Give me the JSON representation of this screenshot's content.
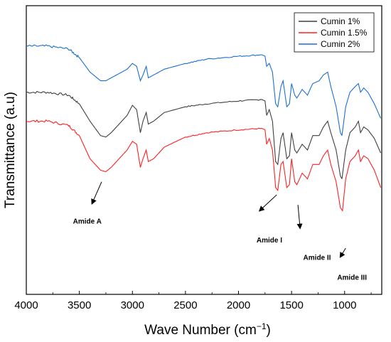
{
  "chart_data": {
    "type": "line",
    "xlabel": "Wave Number (cm",
    "xlabel_sup": "−1",
    "xlabel_close": ")",
    "ylabel": "Transmittance (a.u)",
    "xlim": [
      4000,
      650
    ],
    "x_reversed": true,
    "x_ticks": [
      4000,
      3500,
      3000,
      2500,
      2000,
      1500,
      1000
    ],
    "y_ticks_shown": false,
    "grid": false,
    "legend_position": "top-right",
    "series": [
      {
        "name": "Cumin 1%",
        "color": "#3f3f3f",
        "points": [
          [
            4000,
            0.7
          ],
          [
            3800,
            0.7
          ],
          [
            3600,
            0.69
          ],
          [
            3500,
            0.66
          ],
          [
            3400,
            0.6
          ],
          [
            3300,
            0.55
          ],
          [
            3250,
            0.545
          ],
          [
            3200,
            0.56
          ],
          [
            3100,
            0.6
          ],
          [
            3050,
            0.62
          ],
          [
            3000,
            0.655
          ],
          [
            2960,
            0.64
          ],
          [
            2925,
            0.56
          ],
          [
            2900,
            0.6
          ],
          [
            2870,
            0.63
          ],
          [
            2850,
            0.59
          ],
          [
            2800,
            0.6
          ],
          [
            2700,
            0.63
          ],
          [
            2500,
            0.65
          ],
          [
            2300,
            0.66
          ],
          [
            2000,
            0.67
          ],
          [
            1780,
            0.675
          ],
          [
            1750,
            0.67
          ],
          [
            1735,
            0.62
          ],
          [
            1710,
            0.64
          ],
          [
            1680,
            0.6
          ],
          [
            1650,
            0.46
          ],
          [
            1630,
            0.45
          ],
          [
            1600,
            0.54
          ],
          [
            1580,
            0.56
          ],
          [
            1545,
            0.47
          ],
          [
            1520,
            0.48
          ],
          [
            1500,
            0.56
          ],
          [
            1470,
            0.5
          ],
          [
            1450,
            0.49
          ],
          [
            1400,
            0.52
          ],
          [
            1350,
            0.5
          ],
          [
            1320,
            0.53
          ],
          [
            1300,
            0.55
          ],
          [
            1240,
            0.55
          ],
          [
            1200,
            0.58
          ],
          [
            1160,
            0.6
          ],
          [
            1130,
            0.56
          ],
          [
            1080,
            0.5
          ],
          [
            1040,
            0.41
          ],
          [
            1025,
            0.4
          ],
          [
            990,
            0.5
          ],
          [
            950,
            0.56
          ],
          [
            900,
            0.58
          ],
          [
            870,
            0.6
          ],
          [
            850,
            0.56
          ],
          [
            820,
            0.58
          ],
          [
            780,
            0.57
          ],
          [
            720,
            0.54
          ],
          [
            660,
            0.49
          ]
        ]
      },
      {
        "name": "Cumin 1.5%",
        "color": "#ff2020",
        "points": [
          [
            4000,
            0.6
          ],
          [
            3800,
            0.6
          ],
          [
            3600,
            0.585
          ],
          [
            3500,
            0.55
          ],
          [
            3400,
            0.47
          ],
          [
            3300,
            0.43
          ],
          [
            3250,
            0.425
          ],
          [
            3200,
            0.44
          ],
          [
            3100,
            0.48
          ],
          [
            3050,
            0.5
          ],
          [
            3000,
            0.53
          ],
          [
            2960,
            0.52
          ],
          [
            2925,
            0.44
          ],
          [
            2900,
            0.47
          ],
          [
            2870,
            0.5
          ],
          [
            2850,
            0.46
          ],
          [
            2800,
            0.47
          ],
          [
            2700,
            0.51
          ],
          [
            2500,
            0.545
          ],
          [
            2300,
            0.56
          ],
          [
            2000,
            0.57
          ],
          [
            1780,
            0.575
          ],
          [
            1750,
            0.57
          ],
          [
            1735,
            0.52
          ],
          [
            1710,
            0.54
          ],
          [
            1680,
            0.5
          ],
          [
            1650,
            0.37
          ],
          [
            1630,
            0.36
          ],
          [
            1600,
            0.45
          ],
          [
            1580,
            0.46
          ],
          [
            1545,
            0.37
          ],
          [
            1520,
            0.38
          ],
          [
            1500,
            0.47
          ],
          [
            1470,
            0.39
          ],
          [
            1450,
            0.38
          ],
          [
            1400,
            0.42
          ],
          [
            1350,
            0.4
          ],
          [
            1320,
            0.43
          ],
          [
            1300,
            0.45
          ],
          [
            1240,
            0.45
          ],
          [
            1200,
            0.48
          ],
          [
            1160,
            0.5
          ],
          [
            1130,
            0.45
          ],
          [
            1080,
            0.39
          ],
          [
            1040,
            0.3
          ],
          [
            1020,
            0.29
          ],
          [
            990,
            0.4
          ],
          [
            950,
            0.46
          ],
          [
            900,
            0.48
          ],
          [
            870,
            0.5
          ],
          [
            850,
            0.46
          ],
          [
            820,
            0.48
          ],
          [
            780,
            0.47
          ],
          [
            720,
            0.43
          ],
          [
            660,
            0.37
          ]
        ]
      },
      {
        "name": "Cumin 2%",
        "color": "#1a6fd4",
        "points": [
          [
            4000,
            0.86
          ],
          [
            3800,
            0.86
          ],
          [
            3600,
            0.85
          ],
          [
            3500,
            0.82
          ],
          [
            3400,
            0.77
          ],
          [
            3300,
            0.74
          ],
          [
            3250,
            0.74
          ],
          [
            3200,
            0.75
          ],
          [
            3100,
            0.77
          ],
          [
            3050,
            0.78
          ],
          [
            3000,
            0.8
          ],
          [
            2960,
            0.79
          ],
          [
            2925,
            0.74
          ],
          [
            2900,
            0.76
          ],
          [
            2870,
            0.79
          ],
          [
            2850,
            0.75
          ],
          [
            2800,
            0.76
          ],
          [
            2700,
            0.78
          ],
          [
            2500,
            0.8
          ],
          [
            2300,
            0.815
          ],
          [
            2000,
            0.825
          ],
          [
            1780,
            0.83
          ],
          [
            1750,
            0.825
          ],
          [
            1735,
            0.79
          ],
          [
            1710,
            0.8
          ],
          [
            1680,
            0.77
          ],
          [
            1650,
            0.66
          ],
          [
            1630,
            0.65
          ],
          [
            1600,
            0.72
          ],
          [
            1580,
            0.74
          ],
          [
            1545,
            0.65
          ],
          [
            1520,
            0.66
          ],
          [
            1500,
            0.73
          ],
          [
            1470,
            0.69
          ],
          [
            1450,
            0.68
          ],
          [
            1400,
            0.71
          ],
          [
            1350,
            0.69
          ],
          [
            1320,
            0.715
          ],
          [
            1300,
            0.73
          ],
          [
            1240,
            0.74
          ],
          [
            1200,
            0.76
          ],
          [
            1160,
            0.77
          ],
          [
            1130,
            0.72
          ],
          [
            1080,
            0.65
          ],
          [
            1040,
            0.56
          ],
          [
            1025,
            0.55
          ],
          [
            990,
            0.65
          ],
          [
            950,
            0.7
          ],
          [
            900,
            0.72
          ],
          [
            870,
            0.73
          ],
          [
            850,
            0.7
          ],
          [
            820,
            0.715
          ],
          [
            780,
            0.7
          ],
          [
            720,
            0.66
          ],
          [
            660,
            0.61
          ]
        ]
      }
    ],
    "annotations": [
      {
        "text": "Amide A",
        "x": 3300,
        "y": 0.29,
        "arrow_from": [
          3290,
          0.39
        ],
        "arrow_to": [
          3380,
          0.315
        ],
        "text_x": 3560,
        "text_y": 0.245
      },
      {
        "text": "Amide I",
        "x": 1650,
        "y": 0.26,
        "arrow_from": [
          1640,
          0.345
        ],
        "arrow_to": [
          1800,
          0.29
        ],
        "text_x": 1830,
        "text_y": 0.18
      },
      {
        "text": "Amide II",
        "x": 1440,
        "y": 0.18,
        "arrow_from": [
          1440,
          0.31
        ],
        "arrow_to": [
          1420,
          0.23
        ],
        "text_x": 1390,
        "text_y": 0.12
      },
      {
        "text": "Amide III",
        "x": 1000,
        "y": 0.09,
        "arrow_from": [
          990,
          0.16
        ],
        "arrow_to": [
          1040,
          0.13
        ],
        "text_x": 1070,
        "text_y": 0.05
      }
    ]
  }
}
